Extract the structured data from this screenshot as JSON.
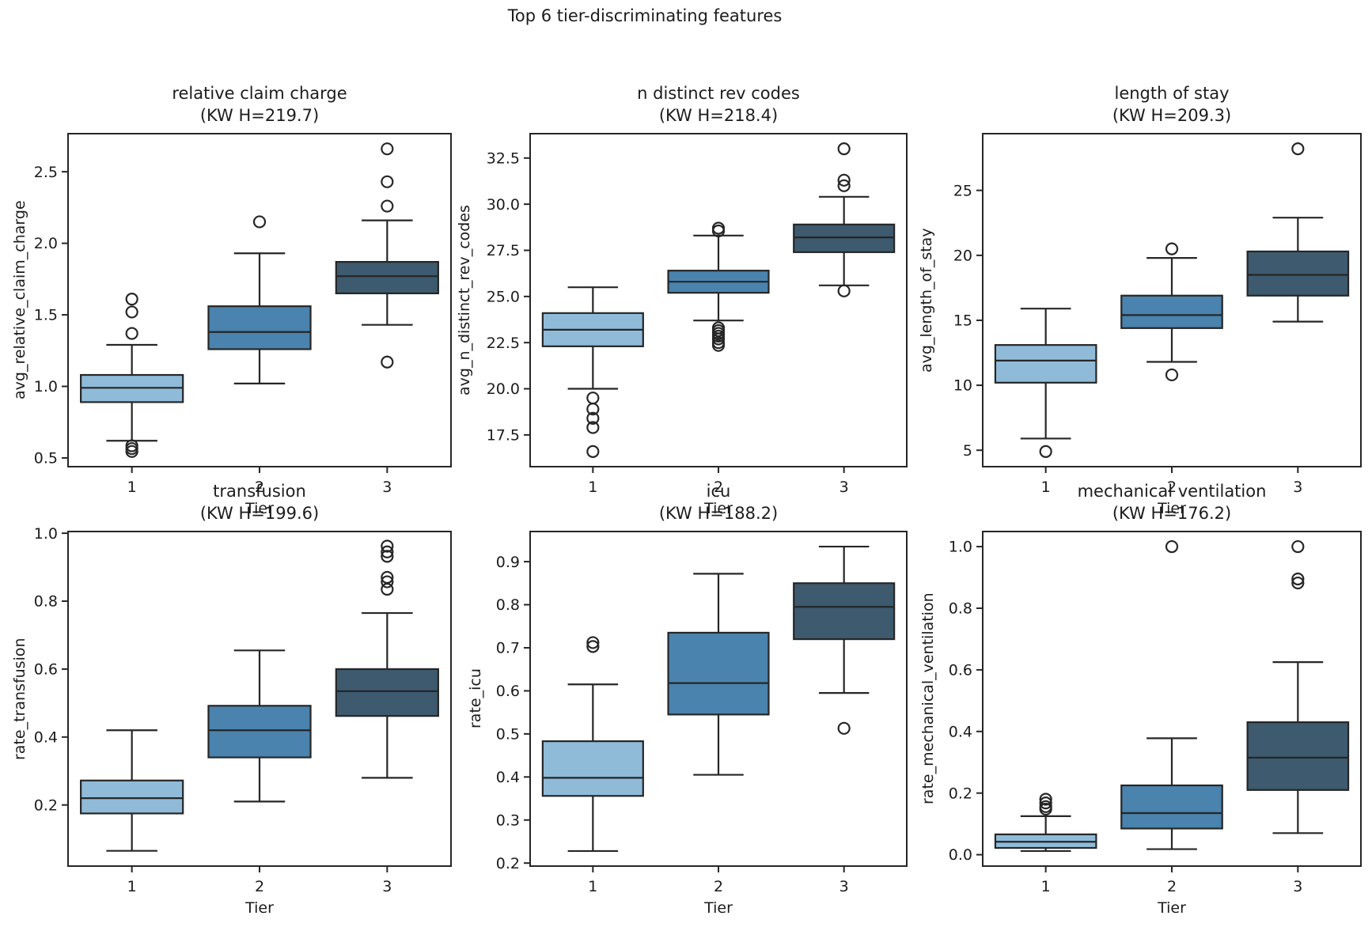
{
  "figure": {
    "title": "Top 6 tier-discriminating features"
  },
  "colors": {
    "background": "#ffffff",
    "edge": "#262626",
    "text": "#1c1c1c",
    "tier_palette": [
      "#8fbbd9",
      "#4a83ad",
      "#3d5a6f"
    ]
  },
  "chart_data": [
    {
      "type": "box",
      "title_line1": "relative claim charge",
      "title_line2": "(KW H=219.7)",
      "ylabel": "avg_relative_claim_charge",
      "xlabel": "Tier",
      "categories": [
        "1",
        "2",
        "3"
      ],
      "ylim": [
        0.439,
        2.766
      ],
      "ytick_values": [
        0.5,
        1.0,
        1.5,
        2.0,
        2.5
      ],
      "ytick_labels": [
        "0.5",
        "1.0",
        "1.5",
        "2.0",
        "2.5"
      ],
      "boxes": [
        {
          "tier": "1",
          "whisker_low": 0.62,
          "q1": 0.89,
          "median": 0.99,
          "q3": 1.08,
          "whisker_high": 1.29,
          "outliers": [
            1.37,
            1.52,
            1.61,
            0.585,
            0.565,
            0.545
          ]
        },
        {
          "tier": "2",
          "whisker_low": 1.02,
          "q1": 1.26,
          "median": 1.38,
          "q3": 1.56,
          "whisker_high": 1.93,
          "outliers": [
            2.15
          ]
        },
        {
          "tier": "3",
          "whisker_low": 1.43,
          "q1": 1.65,
          "median": 1.77,
          "q3": 1.87,
          "whisker_high": 2.16,
          "outliers": [
            2.26,
            2.43,
            2.66,
            1.17
          ]
        }
      ]
    },
    {
      "type": "box",
      "title_line1": "n distinct rev codes",
      "title_line2": "(KW H=218.4)",
      "ylabel": "avg_n_distinct_rev_codes",
      "xlabel": "Tier",
      "categories": [
        "1",
        "2",
        "3"
      ],
      "ylim": [
        15.78,
        33.82
      ],
      "ytick_values": [
        17.5,
        20.0,
        22.5,
        25.0,
        27.5,
        30.0,
        32.5
      ],
      "ytick_labels": [
        "17.5",
        "20.0",
        "22.5",
        "25.0",
        "27.5",
        "30.0",
        "32.5"
      ],
      "boxes": [
        {
          "tier": "1",
          "whisker_low": 20.0,
          "q1": 22.3,
          "median": 23.2,
          "q3": 24.1,
          "whisker_high": 25.5,
          "outliers": [
            19.5,
            18.9,
            18.4,
            17.9,
            16.6
          ]
        },
        {
          "tier": "2",
          "whisker_low": 23.7,
          "q1": 25.2,
          "median": 25.8,
          "q3": 26.4,
          "whisker_high": 28.3,
          "outliers": [
            28.7,
            28.55,
            23.3,
            23.15,
            23.0,
            22.85,
            22.7,
            22.5,
            22.35
          ]
        },
        {
          "tier": "3",
          "whisker_low": 25.6,
          "q1": 27.4,
          "median": 28.2,
          "q3": 28.9,
          "whisker_high": 30.4,
          "outliers": [
            33.0,
            31.3,
            31.0,
            25.3
          ]
        }
      ]
    },
    {
      "type": "box",
      "title_line1": "length of stay",
      "title_line2": "(KW H=209.3)",
      "ylabel": "avg_length_of_stay",
      "xlabel": "Tier",
      "categories": [
        "1",
        "2",
        "3"
      ],
      "ylim": [
        3.735,
        29.365
      ],
      "ytick_values": [
        5,
        10,
        15,
        20,
        25
      ],
      "ytick_labels": [
        "5",
        "10",
        "15",
        "20",
        "25"
      ],
      "boxes": [
        {
          "tier": "1",
          "whisker_low": 5.9,
          "q1": 10.2,
          "median": 11.9,
          "q3": 13.1,
          "whisker_high": 15.9,
          "outliers": [
            4.9
          ]
        },
        {
          "tier": "2",
          "whisker_low": 11.8,
          "q1": 14.4,
          "median": 15.4,
          "q3": 16.9,
          "whisker_high": 19.8,
          "outliers": [
            20.5,
            10.8
          ]
        },
        {
          "tier": "3",
          "whisker_low": 14.9,
          "q1": 16.9,
          "median": 18.5,
          "q3": 20.3,
          "whisker_high": 22.9,
          "outliers": [
            28.2
          ]
        }
      ]
    },
    {
      "type": "box",
      "title_line1": "transfusion",
      "title_line2": "(KW H=199.6)",
      "ylabel": "rate_transfusion",
      "xlabel": "Tier",
      "categories": [
        "1",
        "2",
        "3"
      ],
      "ylim": [
        0.02,
        1.005
      ],
      "ytick_values": [
        0.2,
        0.4,
        0.6,
        0.8,
        1.0
      ],
      "ytick_labels": [
        "0.2",
        "0.4",
        "0.6",
        "0.8",
        "1.0"
      ],
      "boxes": [
        {
          "tier": "1",
          "whisker_low": 0.065,
          "q1": 0.175,
          "median": 0.22,
          "q3": 0.272,
          "whisker_high": 0.42,
          "outliers": []
        },
        {
          "tier": "2",
          "whisker_low": 0.21,
          "q1": 0.34,
          "median": 0.42,
          "q3": 0.492,
          "whisker_high": 0.655,
          "outliers": []
        },
        {
          "tier": "3",
          "whisker_low": 0.28,
          "q1": 0.462,
          "median": 0.535,
          "q3": 0.6,
          "whisker_high": 0.765,
          "outliers": [
            0.962,
            0.945,
            0.932,
            0.87,
            0.857,
            0.835
          ]
        }
      ]
    },
    {
      "type": "box",
      "title_line1": "icu",
      "title_line2": "(KW H=188.2)",
      "ylabel": "rate_icu",
      "xlabel": "Tier",
      "categories": [
        "1",
        "2",
        "3"
      ],
      "ylim": [
        0.193,
        0.97
      ],
      "ytick_values": [
        0.2,
        0.3,
        0.4,
        0.5,
        0.6,
        0.7,
        0.8,
        0.9
      ],
      "ytick_labels": [
        "0.2",
        "0.3",
        "0.4",
        "0.5",
        "0.6",
        "0.7",
        "0.8",
        "0.9"
      ],
      "boxes": [
        {
          "tier": "1",
          "whisker_low": 0.228,
          "q1": 0.356,
          "median": 0.398,
          "q3": 0.483,
          "whisker_high": 0.615,
          "outliers": [
            0.712,
            0.703
          ]
        },
        {
          "tier": "2",
          "whisker_low": 0.405,
          "q1": 0.545,
          "median": 0.618,
          "q3": 0.735,
          "whisker_high": 0.872,
          "outliers": []
        },
        {
          "tier": "3",
          "whisker_low": 0.595,
          "q1": 0.72,
          "median": 0.795,
          "q3": 0.85,
          "whisker_high": 0.935,
          "outliers": [
            0.513
          ]
        }
      ]
    },
    {
      "type": "box",
      "title_line1": "mechanical ventilation",
      "title_line2": "(KW H=176.2)",
      "ylabel": "rate_mechanical_ventilation",
      "xlabel": "Tier",
      "categories": [
        "1",
        "2",
        "3"
      ],
      "ylim": [
        -0.037,
        1.049
      ],
      "ytick_values": [
        0.0,
        0.2,
        0.4,
        0.6,
        0.8,
        1.0
      ],
      "ytick_labels": [
        "0.0",
        "0.2",
        "0.4",
        "0.6",
        "0.8",
        "1.0"
      ],
      "boxes": [
        {
          "tier": "1",
          "whisker_low": 0.012,
          "q1": 0.022,
          "median": 0.042,
          "q3": 0.066,
          "whisker_high": 0.125,
          "outliers": [
            0.18,
            0.168,
            0.156,
            0.148
          ]
        },
        {
          "tier": "2",
          "whisker_low": 0.018,
          "q1": 0.085,
          "median": 0.135,
          "q3": 0.225,
          "whisker_high": 0.378,
          "outliers": [
            1.0
          ]
        },
        {
          "tier": "3",
          "whisker_low": 0.07,
          "q1": 0.21,
          "median": 0.315,
          "q3": 0.43,
          "whisker_high": 0.625,
          "outliers": [
            1.0,
            0.895,
            0.882
          ]
        }
      ]
    }
  ]
}
